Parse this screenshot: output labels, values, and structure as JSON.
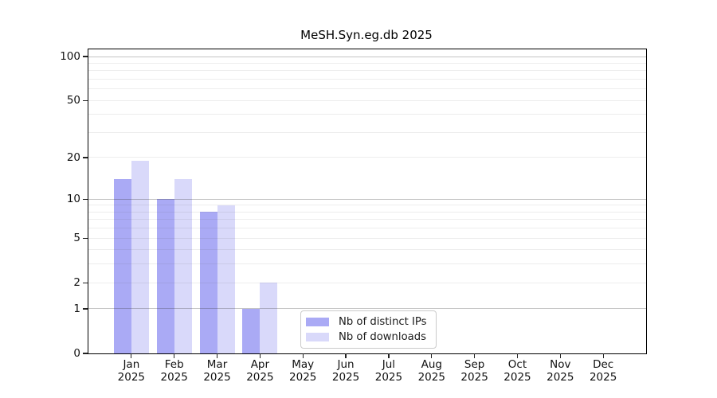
{
  "chart_data": {
    "type": "bar",
    "title": "MeSH.Syn.eg.db 2025",
    "categories": [
      {
        "month": "Jan",
        "year": "2025"
      },
      {
        "month": "Feb",
        "year": "2025"
      },
      {
        "month": "Mar",
        "year": "2025"
      },
      {
        "month": "Apr",
        "year": "2025"
      },
      {
        "month": "May",
        "year": "2025"
      },
      {
        "month": "Jun",
        "year": "2025"
      },
      {
        "month": "Jul",
        "year": "2025"
      },
      {
        "month": "Aug",
        "year": "2025"
      },
      {
        "month": "Sep",
        "year": "2025"
      },
      {
        "month": "Oct",
        "year": "2025"
      },
      {
        "month": "Nov",
        "year": "2025"
      },
      {
        "month": "Dec",
        "year": "2025"
      }
    ],
    "series": [
      {
        "name": "Nb of distinct IPs",
        "color": "#aaaaf5",
        "values": [
          14,
          10,
          8,
          1,
          0,
          0,
          0,
          0,
          0,
          0,
          0,
          0
        ]
      },
      {
        "name": "Nb of downloads",
        "color": "#d9d9fa",
        "values": [
          19,
          14,
          9,
          2,
          0,
          0,
          0,
          0,
          0,
          0,
          0,
          0
        ]
      }
    ],
    "xlabel": "",
    "ylabel": "",
    "y_axis": {
      "scale": "log1p",
      "min": 0,
      "max_display": 112,
      "tick_values": [
        0,
        1,
        2,
        5,
        10,
        20,
        50,
        100
      ],
      "tick_labels": [
        "0",
        "1",
        "2",
        "5",
        "10",
        "20",
        "50",
        "100"
      ],
      "gridlines_major": [
        1,
        10,
        100
      ],
      "gridlines_minor": [
        2,
        3,
        4,
        5,
        6,
        7,
        8,
        9,
        20,
        30,
        40,
        50,
        60,
        70,
        80,
        90
      ]
    },
    "grid": true,
    "legend_position": "bottom-center",
    "colors": {
      "grid_major": "rgba(60,60,60,0.30)",
      "grid_minor": "rgba(60,60,60,0.095)",
      "spine": "#000000",
      "text": "#111111"
    }
  }
}
